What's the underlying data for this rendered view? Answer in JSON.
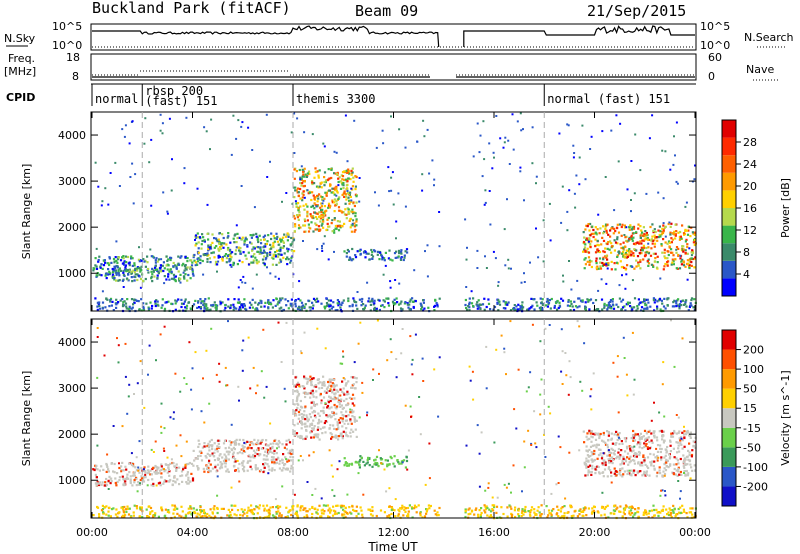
{
  "header": {
    "title": "Buckland Park (fitACF)",
    "beam": "Beam 09",
    "date": "21/Sep/2015"
  },
  "top_panels": {
    "nsky_label": "N.Sky",
    "nsky_ticks": [
      "10^5",
      "10^0"
    ],
    "nsearch_label": "N.Search",
    "nsearch_ticks": [
      "10^5",
      "10^0"
    ],
    "freq_label_1": "Freq.",
    "freq_label_2": "[MHz]",
    "freq_ticks": [
      "18",
      "8"
    ],
    "nave_label": "Nave",
    "nave_ticks": [
      "60",
      "0"
    ],
    "cpid_label": "CPID",
    "cpid_segments": [
      {
        "label": "normal",
        "start_h": 0
      },
      {
        "label": "rbsp 200\n(fast) 151",
        "start_h": 2
      },
      {
        "label": "themis 3300",
        "start_h": 8
      },
      {
        "label": "normal (fast) 151",
        "start_h": 18
      }
    ]
  },
  "x_axis": {
    "label": "Time UT",
    "ticks": [
      "00:00",
      "04:00",
      "08:00",
      "12:00",
      "16:00",
      "20:00",
      "00:00"
    ]
  },
  "power_colorbar": {
    "label": "Power [dB]",
    "ticks": [
      "4",
      "8",
      "12",
      "16",
      "20",
      "24",
      "28"
    ],
    "colors": [
      "#0000ff",
      "#2a57c8",
      "#3a8a6a",
      "#39b54a",
      "#b5d94c",
      "#ffd000",
      "#ff9a00",
      "#ff6000",
      "#ff2a00",
      "#e00000"
    ]
  },
  "velocity_colorbar": {
    "label": "Velocity [m s^-1]",
    "ticks": [
      "200",
      "100",
      "50",
      "15",
      "-15",
      "-50",
      "-100",
      "-200"
    ],
    "colors": [
      "#1010c8",
      "#2a57c8",
      "#3a9a5a",
      "#6ad04a",
      "#c8c8c0",
      "#ffd000",
      "#ff9a00",
      "#ff5000",
      "#e00000"
    ]
  },
  "chart_data": [
    {
      "type": "heatmap",
      "ylabel": "Slant Range [km]",
      "xlabel": "Time UT",
      "x_range_h": [
        0,
        24
      ],
      "y_ticks": [
        "1000",
        "2000",
        "3000",
        "4000"
      ],
      "ylim": [
        180,
        4500
      ],
      "value": "Power [dB]",
      "data_gap_h": [
        13.8,
        14.8
      ],
      "scatter_regions": [
        {
          "t": [
            0,
            4
          ],
          "r": [
            1050,
            1400
          ],
          "level": 4
        },
        {
          "t": [
            0,
            4
          ],
          "r": [
            850,
            1150
          ],
          "level": 4
        },
        {
          "t": [
            4,
            8
          ],
          "r": [
            1200,
            1900
          ],
          "level": 5
        },
        {
          "t": [
            8,
            10.5
          ],
          "r": [
            1900,
            3300
          ],
          "level": 6
        },
        {
          "t": [
            10,
            12.5
          ],
          "r": [
            1300,
            1550
          ],
          "level": 3
        },
        {
          "t": [
            19.5,
            24
          ],
          "r": [
            1100,
            2100
          ],
          "level": 7
        },
        {
          "t": [
            0,
            24
          ],
          "r": [
            200,
            480
          ],
          "level": 3
        }
      ]
    },
    {
      "type": "heatmap",
      "ylabel": "Slant Range [km]",
      "xlabel": "Time UT",
      "x_range_h": [
        0,
        24
      ],
      "y_ticks": [
        "1000",
        "2000",
        "3000",
        "4000"
      ],
      "ylim": [
        180,
        4500
      ],
      "value": "Velocity [m s^-1]",
      "data_gap_h": [
        13.8,
        14.8
      ],
      "scatter_regions": [
        {
          "t": [
            0,
            4
          ],
          "r": [
            900,
            1400
          ],
          "class": "ground"
        },
        {
          "t": [
            4,
            8
          ],
          "r": [
            1200,
            1900
          ],
          "class": "ground"
        },
        {
          "t": [
            8,
            10.5
          ],
          "r": [
            1900,
            3300
          ],
          "class": "ground"
        },
        {
          "t": [
            10,
            12.5
          ],
          "r": [
            1300,
            1550
          ],
          "class": "positive"
        },
        {
          "t": [
            19.5,
            24
          ],
          "r": [
            1100,
            2100
          ],
          "class": "ground"
        },
        {
          "t": [
            0,
            24
          ],
          "r": [
            200,
            480
          ],
          "class": "negative"
        }
      ]
    }
  ]
}
